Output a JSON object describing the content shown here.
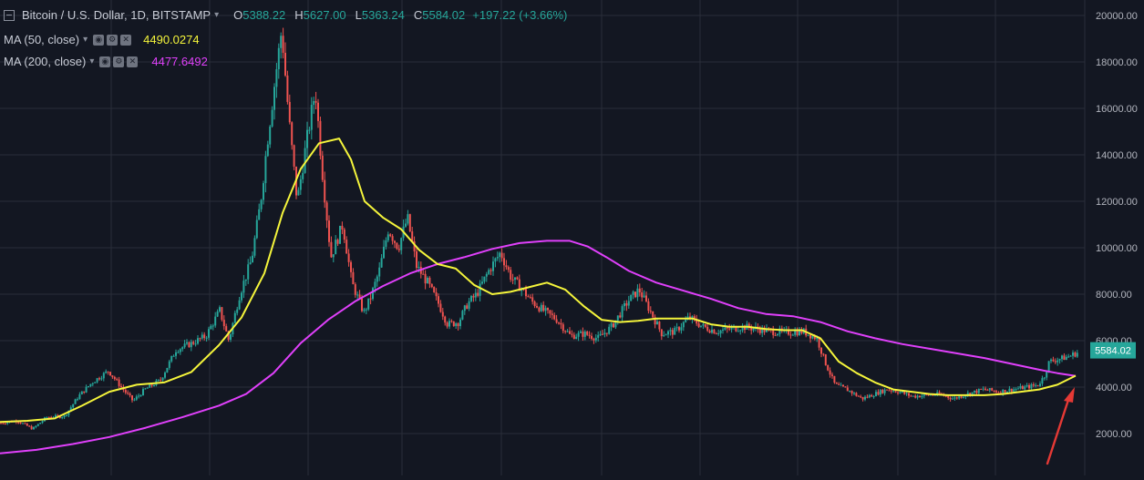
{
  "legend": {
    "symbol": "Bitcoin / U.S. Dollar, 1D, BITSTAMP",
    "open_key": "O",
    "open": "5388.22",
    "high_key": "H",
    "high": "5627.00",
    "low_key": "L",
    "low": "5363.24",
    "close_key": "C",
    "close": "5584.02",
    "change": "+197.22 (+3.66%)",
    "ma50_label": "MA (50, close)",
    "ma50_value": "4490.0274",
    "ma200_label": "MA (200, close)",
    "ma200_value": "4477.6492",
    "icons": [
      "eye-icon",
      "gear-icon",
      "close-icon"
    ]
  },
  "chart_data": {
    "type": "line",
    "ylim": [
      950,
      20350
    ],
    "yticks": [
      "2000.00",
      "4000.00",
      "6000.00",
      "8000.00",
      "10000.00",
      "12000.00",
      "14000.00",
      "16000.00",
      "18000.00",
      "20000.00"
    ],
    "grid": true,
    "last_price": "5584.02",
    "colors": {
      "up": "#26a69a",
      "down": "#ef5350",
      "ma50": "#f5f53b",
      "ma200": "#e040fb",
      "arrow": "#e53935",
      "background": "#131722",
      "grid": "#2a2e39"
    },
    "price_path": [
      [
        0,
        2450
      ],
      [
        18,
        2550
      ],
      [
        35,
        2200
      ],
      [
        50,
        2700
      ],
      [
        70,
        2750
      ],
      [
        85,
        3600
      ],
      [
        100,
        4200
      ],
      [
        118,
        4700
      ],
      [
        132,
        4000
      ],
      [
        145,
        3400
      ],
      [
        158,
        3900
      ],
      [
        175,
        4300
      ],
      [
        192,
        5600
      ],
      [
        210,
        5900
      ],
      [
        225,
        6200
      ],
      [
        240,
        7300
      ],
      [
        250,
        6000
      ],
      [
        262,
        8000
      ],
      [
        275,
        9500
      ],
      [
        285,
        12000
      ],
      [
        292,
        14500
      ],
      [
        300,
        17000
      ],
      [
        308,
        19400
      ],
      [
        316,
        15500
      ],
      [
        325,
        12000
      ],
      [
        335,
        14500
      ],
      [
        345,
        16800
      ],
      [
        352,
        13500
      ],
      [
        362,
        9600
      ],
      [
        375,
        11000
      ],
      [
        385,
        8500
      ],
      [
        398,
        7200
      ],
      [
        405,
        7800
      ],
      [
        415,
        9000
      ],
      [
        425,
        10800
      ],
      [
        436,
        10000
      ],
      [
        446,
        11300
      ],
      [
        456,
        9200
      ],
      [
        468,
        8500
      ],
      [
        480,
        7600
      ],
      [
        490,
        6700
      ],
      [
        502,
        6800
      ],
      [
        512,
        7600
      ],
      [
        522,
        8000
      ],
      [
        535,
        9000
      ],
      [
        548,
        9800
      ],
      [
        560,
        8700
      ],
      [
        570,
        8300
      ],
      [
        582,
        7700
      ],
      [
        595,
        7300
      ],
      [
        610,
        6900
      ],
      [
        625,
        6200
      ],
      [
        640,
        6300
      ],
      [
        655,
        6100
      ],
      [
        670,
        6600
      ],
      [
        688,
        7700
      ],
      [
        700,
        8200
      ],
      [
        712,
        7300
      ],
      [
        725,
        6300
      ],
      [
        740,
        6400
      ],
      [
        755,
        7000
      ],
      [
        770,
        6600
      ],
      [
        785,
        6400
      ],
      [
        800,
        6500
      ],
      [
        815,
        6600
      ],
      [
        830,
        6500
      ],
      [
        845,
        6400
      ],
      [
        860,
        6350
      ],
      [
        880,
        6400
      ],
      [
        895,
        6100
      ],
      [
        905,
        5000
      ],
      [
        915,
        4100
      ],
      [
        928,
        3900
      ],
      [
        945,
        3500
      ],
      [
        958,
        3700
      ],
      [
        972,
        3900
      ],
      [
        985,
        3800
      ],
      [
        1000,
        3600
      ],
      [
        1015,
        3650
      ],
      [
        1030,
        3700
      ],
      [
        1045,
        3500
      ],
      [
        1060,
        3700
      ],
      [
        1078,
        3900
      ],
      [
        1095,
        3800
      ],
      [
        1110,
        3900
      ],
      [
        1125,
        4000
      ],
      [
        1138,
        4100
      ],
      [
        1145,
        4500
      ],
      [
        1150,
        5100
      ],
      [
        1160,
        5200
      ],
      [
        1170,
        5300
      ],
      [
        1182,
        5500
      ]
    ],
    "ma50_path": [
      [
        0,
        2500
      ],
      [
        30,
        2550
      ],
      [
        60,
        2650
      ],
      [
        90,
        3200
      ],
      [
        120,
        3800
      ],
      [
        150,
        4100
      ],
      [
        180,
        4200
      ],
      [
        210,
        4650
      ],
      [
        240,
        5800
      ],
      [
        265,
        7000
      ],
      [
        290,
        8900
      ],
      [
        310,
        11500
      ],
      [
        330,
        13400
      ],
      [
        350,
        14500
      ],
      [
        372,
        14700
      ],
      [
        385,
        13800
      ],
      [
        400,
        12000
      ],
      [
        420,
        11300
      ],
      [
        440,
        10800
      ],
      [
        460,
        9900
      ],
      [
        480,
        9300
      ],
      [
        500,
        9100
      ],
      [
        520,
        8400
      ],
      [
        540,
        8000
      ],
      [
        560,
        8100
      ],
      [
        580,
        8300
      ],
      [
        600,
        8500
      ],
      [
        620,
        8200
      ],
      [
        640,
        7500
      ],
      [
        660,
        6900
      ],
      [
        680,
        6800
      ],
      [
        700,
        6850
      ],
      [
        720,
        6950
      ],
      [
        740,
        6950
      ],
      [
        760,
        6950
      ],
      [
        780,
        6700
      ],
      [
        800,
        6600
      ],
      [
        820,
        6600
      ],
      [
        840,
        6500
      ],
      [
        860,
        6450
      ],
      [
        880,
        6450
      ],
      [
        900,
        6100
      ],
      [
        920,
        5100
      ],
      [
        940,
        4600
      ],
      [
        960,
        4200
      ],
      [
        980,
        3900
      ],
      [
        1000,
        3800
      ],
      [
        1020,
        3700
      ],
      [
        1040,
        3650
      ],
      [
        1060,
        3650
      ],
      [
        1080,
        3650
      ],
      [
        1100,
        3700
      ],
      [
        1120,
        3800
      ],
      [
        1140,
        3900
      ],
      [
        1160,
        4100
      ],
      [
        1180,
        4490
      ]
    ],
    "ma200_path": [
      [
        0,
        1150
      ],
      [
        40,
        1300
      ],
      [
        80,
        1550
      ],
      [
        120,
        1850
      ],
      [
        160,
        2250
      ],
      [
        200,
        2700
      ],
      [
        240,
        3200
      ],
      [
        270,
        3700
      ],
      [
        300,
        4600
      ],
      [
        330,
        5900
      ],
      [
        360,
        6900
      ],
      [
        390,
        7700
      ],
      [
        420,
        8350
      ],
      [
        450,
        8900
      ],
      [
        480,
        9300
      ],
      [
        510,
        9600
      ],
      [
        540,
        9950
      ],
      [
        570,
        10200
      ],
      [
        600,
        10300
      ],
      [
        625,
        10300
      ],
      [
        645,
        10050
      ],
      [
        665,
        9600
      ],
      [
        690,
        9000
      ],
      [
        720,
        8500
      ],
      [
        750,
        8150
      ],
      [
        780,
        7800
      ],
      [
        810,
        7400
      ],
      [
        840,
        7150
      ],
      [
        870,
        7050
      ],
      [
        900,
        6800
      ],
      [
        930,
        6400
      ],
      [
        960,
        6100
      ],
      [
        990,
        5850
      ],
      [
        1020,
        5650
      ],
      [
        1050,
        5450
      ],
      [
        1080,
        5250
      ],
      [
        1110,
        5000
      ],
      [
        1140,
        4750
      ],
      [
        1160,
        4600
      ],
      [
        1180,
        4478
      ]
    ]
  }
}
